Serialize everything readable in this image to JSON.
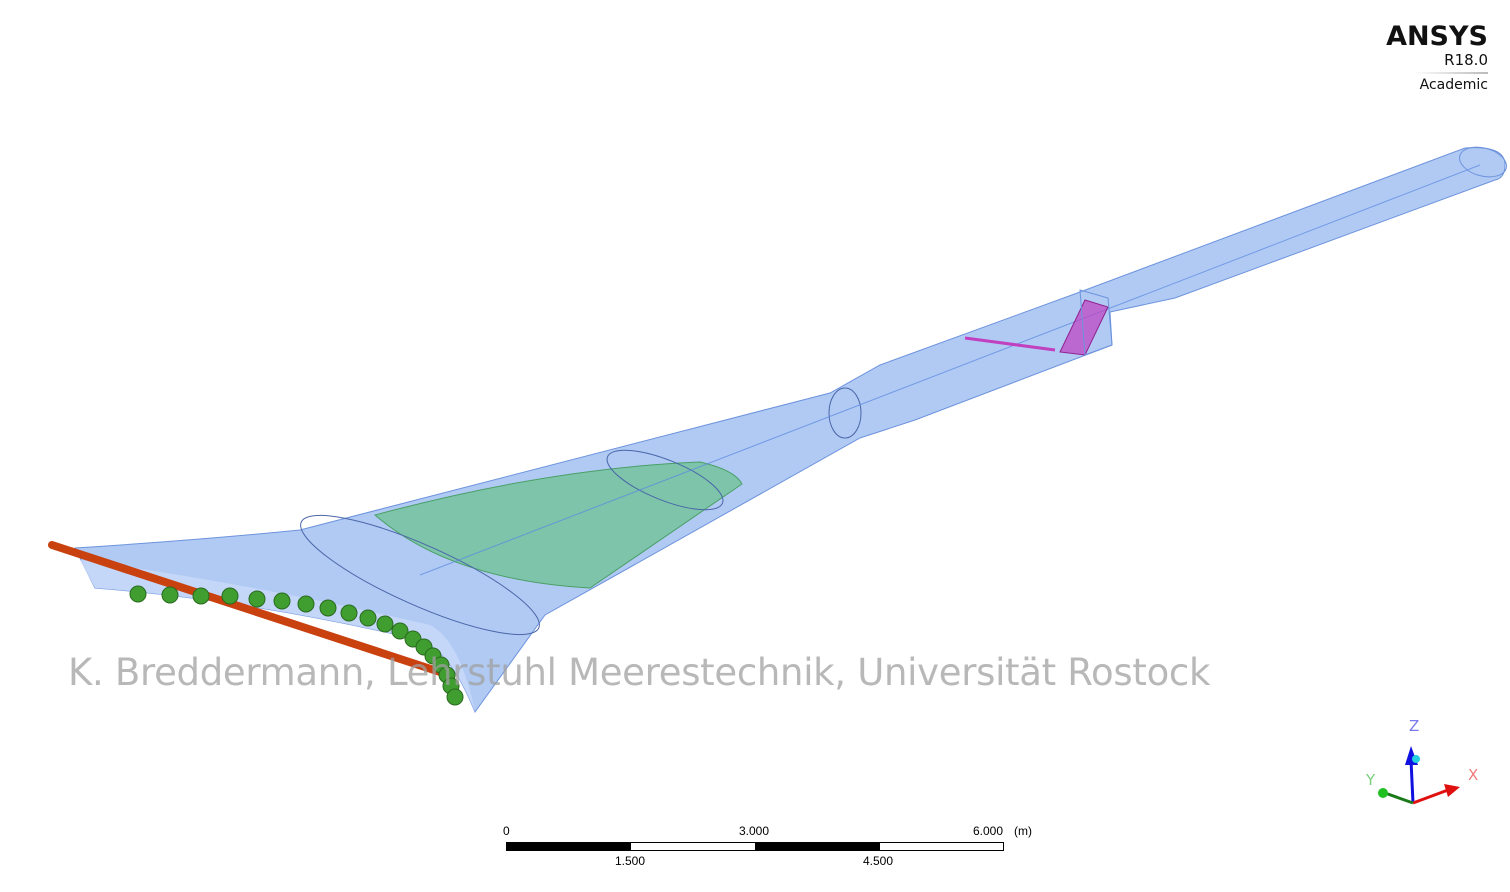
{
  "logo": {
    "brand": "ANSYS",
    "version": "R18.0",
    "edition": "Academic"
  },
  "watermark": "K. Breddermann, Lehrstuhl Meerestechnik, Universität Rostock",
  "scale_bar": {
    "top_labels": [
      "0",
      "3.000",
      "6.000"
    ],
    "bottom_labels": [
      "1.500",
      "4.500"
    ],
    "unit": "(m)"
  },
  "triad": {
    "x_label": "X",
    "y_label": "Y",
    "z_label": "Z",
    "colors": {
      "x": "#e01010",
      "y": "#1a9a1a",
      "z": "#1010e0"
    }
  },
  "colors": {
    "body": "#8fb3f0",
    "cone": "#5cbf7a",
    "rod": "#c8410f",
    "cylinders": "#3f9e2f",
    "screen": "#c040c0"
  }
}
